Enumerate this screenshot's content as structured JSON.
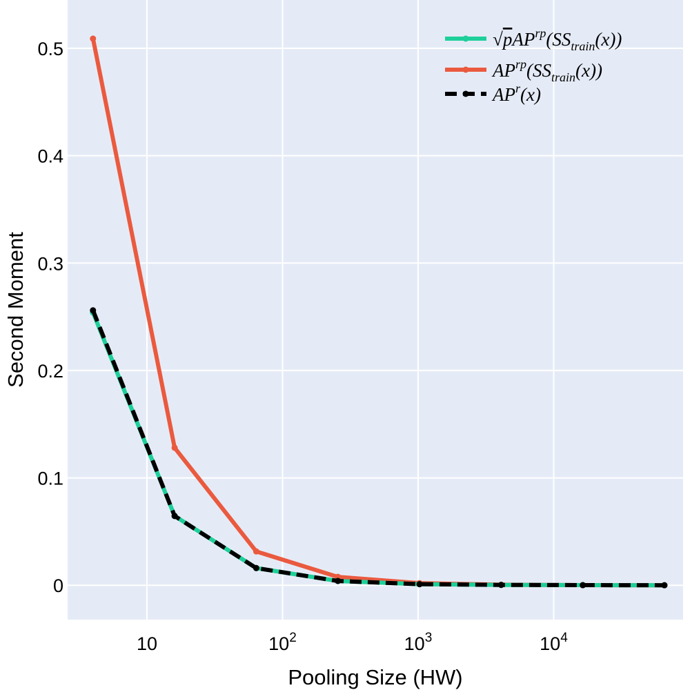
{
  "chart_data": {
    "type": "line",
    "title": "",
    "xlabel": "Pooling Size (HW)",
    "ylabel": "Second Moment",
    "xscale": "log",
    "x": [
      4,
      16,
      64,
      256,
      1024,
      4096,
      16384,
      65536
    ],
    "xlim": [
      2.6,
      90000
    ],
    "ylim": [
      -0.032,
      0.545
    ],
    "x_ticks": [
      {
        "value": 10,
        "base": "10",
        "exp": ""
      },
      {
        "value": 100,
        "base": "10",
        "exp": "2"
      },
      {
        "value": 1000,
        "base": "10",
        "exp": "3"
      },
      {
        "value": 10000,
        "base": "10",
        "exp": "4"
      }
    ],
    "y_ticks": [
      {
        "value": 0,
        "label": "0"
      },
      {
        "value": 0.1,
        "label": "0.1"
      },
      {
        "value": 0.2,
        "label": "0.2"
      },
      {
        "value": 0.3,
        "label": "0.3"
      },
      {
        "value": 0.4,
        "label": "0.4"
      },
      {
        "value": 0.5,
        "label": "0.5"
      }
    ],
    "grid": true,
    "legend_position": "top-right",
    "series": [
      {
        "name": "√pAP^rp(SS_train(x))",
        "legend": {
          "pre": "",
          "sqrt": "p",
          "base": "AP",
          "sup": "rp",
          "mid": "(SS",
          "sub": "train",
          "post": "(x))"
        },
        "color": "#1ecf9a",
        "dashed": false,
        "values": [
          0.254,
          0.0645,
          0.016,
          0.004,
          0.001,
          0.0003,
          0.0001,
          2e-05
        ]
      },
      {
        "name": "AP^rp(SS_train(x))",
        "legend": {
          "pre": "",
          "sqrt": "",
          "base": "AP",
          "sup": "rp",
          "mid": "(SS",
          "sub": "train",
          "post": "(x))"
        },
        "color": "#ea5a3f",
        "dashed": false,
        "values": [
          0.509,
          0.128,
          0.0315,
          0.0078,
          0.002,
          0.0005,
          0.0001,
          3e-05
        ]
      },
      {
        "name": "AP^r(x)",
        "legend": {
          "pre": "",
          "sqrt": "",
          "base": "AP",
          "sup": "r",
          "mid": "(x)",
          "sub": "",
          "post": ""
        },
        "color": "#000000",
        "dashed": true,
        "values": [
          0.256,
          0.0645,
          0.016,
          0.004,
          0.001,
          0.0003,
          0.0001,
          2e-05
        ]
      }
    ]
  },
  "colors": {
    "plot_background": "#e5ebf6",
    "grid": "#ffffff"
  }
}
